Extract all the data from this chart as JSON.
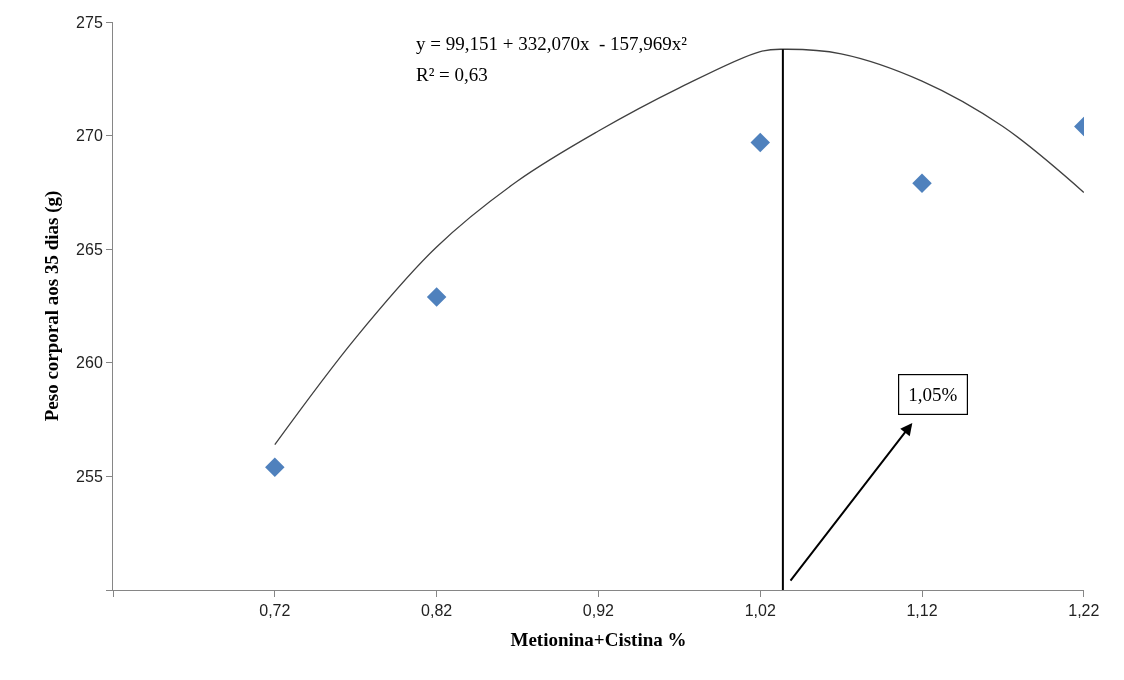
{
  "chart_data": {
    "type": "scatter",
    "xlabel": "Metionina+Cistina %",
    "ylabel": "Peso corporal aos 35 dias (g)",
    "x": [
      0.72,
      0.82,
      1.02,
      1.12,
      1.22
    ],
    "series": [
      {
        "color": "#4f81bd",
        "marker": "diamond",
        "values": [
          255.4,
          262.9,
          269.7,
          267.9,
          270.4
        ]
      },
      {
        "type": "line",
        "color": "#404040",
        "line_style": "solid",
        "x": [
          0.72,
          0.77,
          0.82,
          0.87,
          0.92,
          0.97,
          1.02,
          1.035,
          1.07,
          1.12,
          1.17,
          1.22
        ],
        "values": [
          256.4,
          261.1,
          265.1,
          268.0,
          270.2,
          272.1,
          273.7,
          273.8,
          273.6,
          272.4,
          270.4,
          267.5
        ]
      }
    ],
    "xlim": [
      0.62,
      1.22
    ],
    "xticks": [
      {
        "value": 0.62,
        "label": null
      },
      {
        "value": 0.72,
        "label": "0,72"
      },
      {
        "value": 0.82,
        "label": "0,82"
      },
      {
        "value": 0.92,
        "label": "0,92"
      },
      {
        "value": 1.02,
        "label": "1,02"
      },
      {
        "value": 1.12,
        "label": "1,12"
      },
      {
        "value": 1.22,
        "label": "1,22"
      }
    ],
    "ylim": [
      250,
      275
    ],
    "yticks": [
      {
        "value": 250,
        "label": null
      },
      255,
      260,
      265,
      270,
      275
    ],
    "ref_lines": [
      {
        "axis": "x",
        "value": 1.034,
        "color": "#000000"
      }
    ],
    "annotations": [
      "y = 99,151 + 332,070x  - 157,969x²",
      "R² = 0,63",
      "1,05%"
    ]
  }
}
